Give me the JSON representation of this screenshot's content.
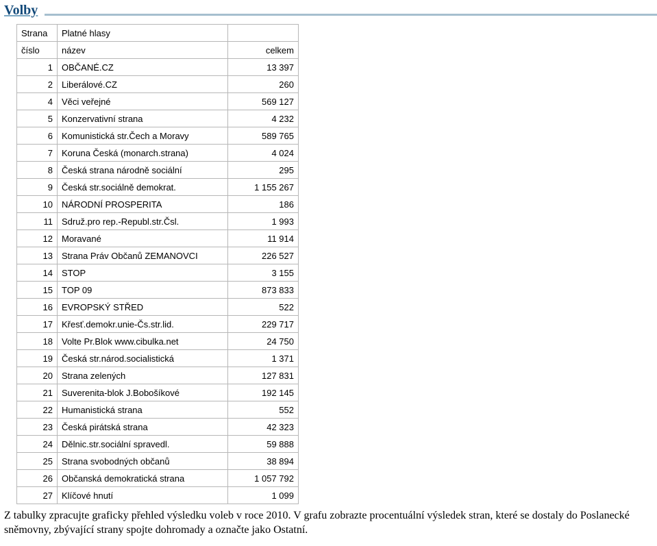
{
  "title": "Volby",
  "header": {
    "strana": "Strana",
    "platne_hlasy": "Platné hlasy",
    "cislo": "číslo",
    "nazev": "název",
    "celkem": "celkem"
  },
  "rows": [
    {
      "n": "1",
      "name": "OBČANÉ.CZ",
      "val": "13 397"
    },
    {
      "n": "2",
      "name": "Liberálové.CZ",
      "val": "260"
    },
    {
      "n": "4",
      "name": "Věci veřejné",
      "val": "569 127"
    },
    {
      "n": "5",
      "name": "Konzervativní strana",
      "val": "4 232"
    },
    {
      "n": "6",
      "name": "Komunistická str.Čech a Moravy",
      "val": "589 765"
    },
    {
      "n": "7",
      "name": "Koruna Česká (monarch.strana)",
      "val": "4 024"
    },
    {
      "n": "8",
      "name": "Česká strana národně sociální",
      "val": "295"
    },
    {
      "n": "9",
      "name": "Česká str.sociálně demokrat.",
      "val": "1 155 267"
    },
    {
      "n": "10",
      "name": "NÁRODNÍ PROSPERITA",
      "val": "186"
    },
    {
      "n": "11",
      "name": "Sdruž.pro rep.-Republ.str.Čsl.",
      "val": "1 993"
    },
    {
      "n": "12",
      "name": "Moravané",
      "val": "11 914"
    },
    {
      "n": "13",
      "name": "Strana Práv Občanů ZEMANOVCI",
      "val": "226 527"
    },
    {
      "n": "14",
      "name": "STOP",
      "val": "3 155"
    },
    {
      "n": "15",
      "name": "TOP 09",
      "val": "873 833"
    },
    {
      "n": "16",
      "name": "EVROPSKÝ STŘED",
      "val": "522"
    },
    {
      "n": "17",
      "name": "Křesť.demokr.unie-Čs.str.lid.",
      "val": "229 717"
    },
    {
      "n": "18",
      "name": "Volte Pr.Blok www.cibulka.net",
      "val": "24 750"
    },
    {
      "n": "19",
      "name": "Česká str.národ.socialistická",
      "val": "1 371"
    },
    {
      "n": "20",
      "name": "Strana zelených",
      "val": "127 831"
    },
    {
      "n": "21",
      "name": "Suverenita-blok J.Bobošíkové",
      "val": "192 145"
    },
    {
      "n": "22",
      "name": "Humanistická strana",
      "val": "552"
    },
    {
      "n": "23",
      "name": "Česká pirátská strana",
      "val": "42 323"
    },
    {
      "n": "24",
      "name": "Dělnic.str.sociální spravedl.",
      "val": "59 888"
    },
    {
      "n": "25",
      "name": "Strana svobodných občanů",
      "val": "38 894"
    },
    {
      "n": "26",
      "name": "Občanská demokratická strana",
      "val": "1 057 792"
    },
    {
      "n": "27",
      "name": "Klíčové hnutí",
      "val": "1 099"
    }
  ],
  "task": "Z tabulky zpracujte graficky přehled výsledku voleb v roce 2010. V grafu zobrazte procentuální výsledek stran, které se dostaly do Poslanecké sněmovny, zbývající strany spojte dohromady a označte jako Ostatní.",
  "colors": {
    "title_color": "#134a7a",
    "line_color": "#7aa6c2",
    "grid_color": "#b7b7b7"
  }
}
